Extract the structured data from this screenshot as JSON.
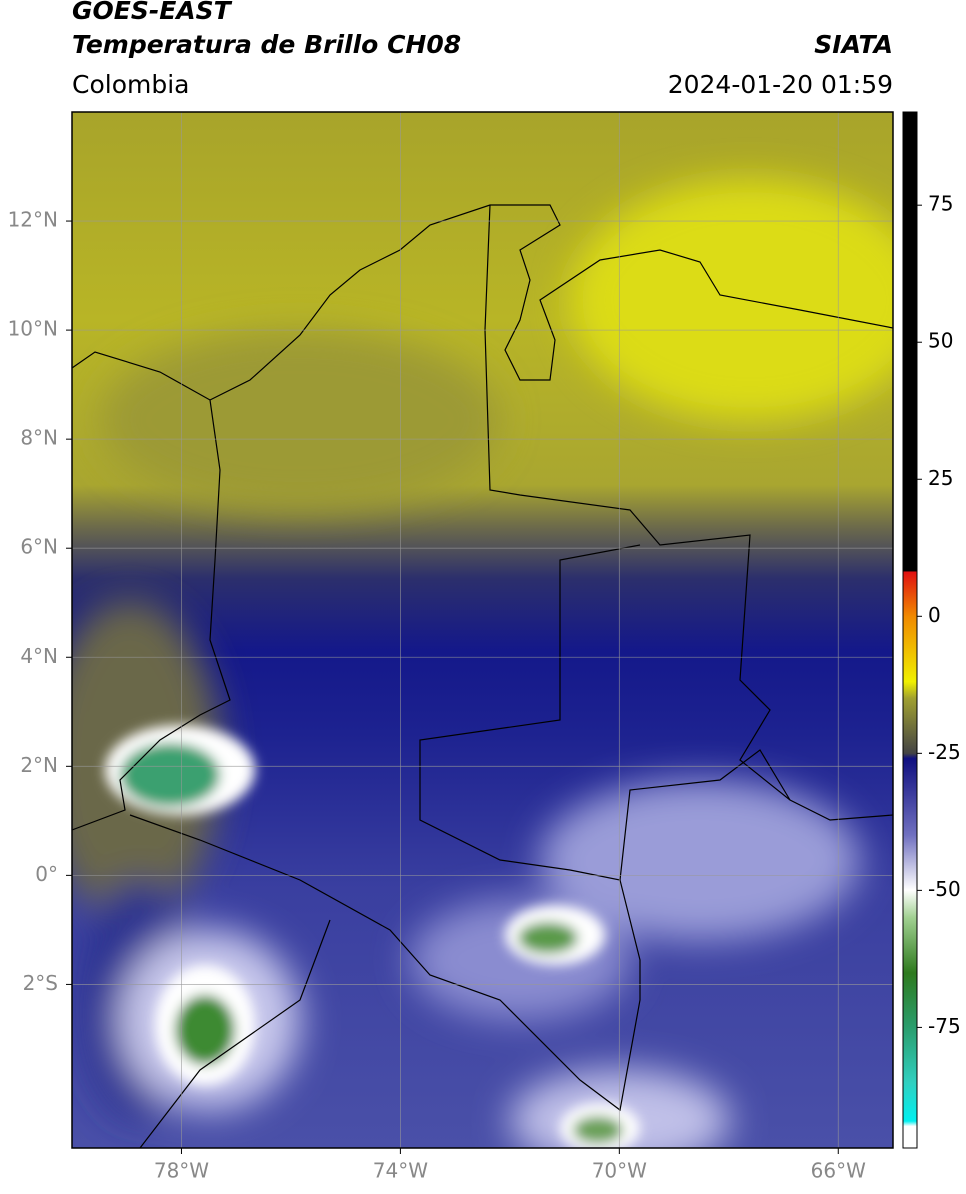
{
  "header": {
    "title": "GOES-EAST",
    "subtitle": "Temperatura de Brillo CH08",
    "region": "Colombia",
    "source": "SIATA",
    "datetime": "2024-01-20 01:59"
  },
  "map": {
    "xlim": [
      -80,
      -65
    ],
    "ylim": [
      -5,
      14
    ],
    "xticks": [
      {
        "value": -78,
        "label": "78°W"
      },
      {
        "value": -74,
        "label": "74°W"
      },
      {
        "value": -70,
        "label": "70°W"
      },
      {
        "value": -66,
        "label": "66°W"
      }
    ],
    "yticks": [
      {
        "value": 12,
        "label": "12°N"
      },
      {
        "value": 10,
        "label": "10°N"
      },
      {
        "value": 8,
        "label": "8°N"
      },
      {
        "value": 6,
        "label": "6°N"
      },
      {
        "value": 4,
        "label": "4°N"
      },
      {
        "value": 2,
        "label": "2°N"
      },
      {
        "value": 0,
        "label": "0°"
      },
      {
        "value": -2,
        "label": "2°S"
      }
    ],
    "grid": true
  },
  "colorbar": {
    "lim": [
      -97,
      92
    ],
    "ticks": [
      -75,
      -50,
      -25,
      0,
      25,
      50,
      75
    ]
  }
}
